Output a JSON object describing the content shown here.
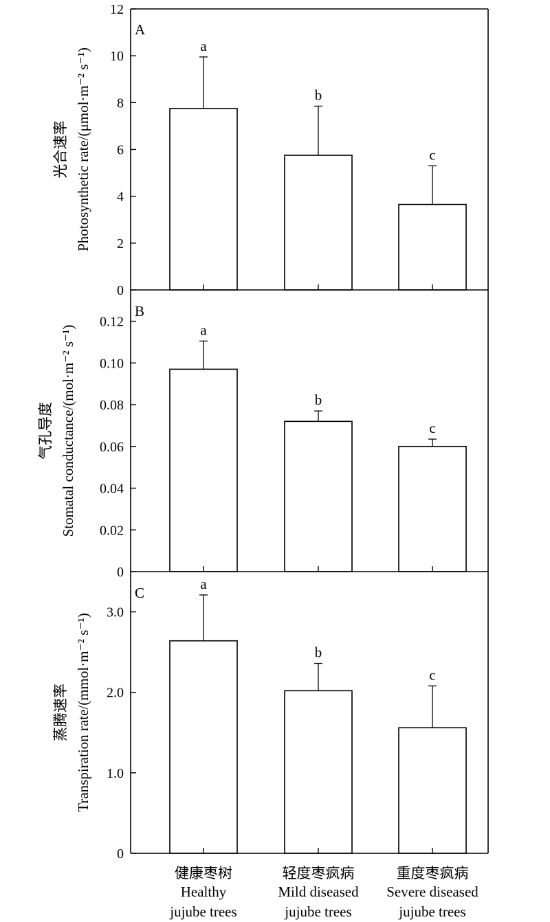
{
  "chart_data": [
    {
      "type": "bar",
      "panel": "A",
      "ylabel": "光合速率",
      "ylabel_en": "Photosynthetic rate/(μmol·m⁻² s⁻¹)",
      "categories": [
        "健康枣树",
        "轻度枣疯病",
        "重度枣疯病"
      ],
      "values": [
        7.75,
        5.75,
        3.65
      ],
      "errors": [
        2.2,
        2.1,
        1.65
      ],
      "significance": [
        "a",
        "b",
        "c"
      ],
      "ylim": [
        0,
        12
      ],
      "yticks": [
        0,
        2,
        4,
        6,
        8,
        10,
        12
      ],
      "ytick_labels": [
        "0",
        "2",
        "4",
        "6",
        "8",
        "10",
        "12"
      ]
    },
    {
      "type": "bar",
      "panel": "B",
      "ylabel": "气孔导度",
      "ylabel_en": "Stomatal conductance/(mol·m⁻² s⁻¹)",
      "categories": [
        "健康枣树",
        "轻度枣疯病",
        "重度枣疯病"
      ],
      "values": [
        0.097,
        0.072,
        0.06
      ],
      "errors": [
        0.0135,
        0.005,
        0.0035
      ],
      "significance": [
        "a",
        "b",
        "c"
      ],
      "ylim": [
        0,
        0.135
      ],
      "yticks": [
        0,
        0.02,
        0.04,
        0.06,
        0.08,
        0.1,
        0.12
      ],
      "ytick_labels": [
        "0",
        "0.02",
        "0.04",
        "0.06",
        "0.08",
        "0.10",
        "0.12"
      ]
    },
    {
      "type": "bar",
      "panel": "C",
      "ylabel": "蒸腾速率",
      "ylabel_en": "Transpiration rate/(mmol·m⁻² s⁻¹)",
      "categories": [
        "健康枣树",
        "轻度枣疯病",
        "重度枣疯病"
      ],
      "values": [
        2.64,
        2.02,
        1.56
      ],
      "errors": [
        0.57,
        0.34,
        0.52
      ],
      "significance": [
        "a",
        "b",
        "c"
      ],
      "ylim": [
        0,
        3.5
      ],
      "yticks": [
        0,
        1,
        2,
        3
      ],
      "ytick_labels": [
        "0",
        "1.0",
        "2.0",
        "3.0"
      ]
    }
  ],
  "x_categories": [
    {
      "zh": "健康枣树",
      "en1": "Healthy",
      "en2": "jujube trees"
    },
    {
      "zh": "轻度枣疯病",
      "en1": "Mild diseased",
      "en2": "jujube trees"
    },
    {
      "zh": "重度枣疯病",
      "en1": "Severe diseased",
      "en2": "jujube trees"
    }
  ]
}
